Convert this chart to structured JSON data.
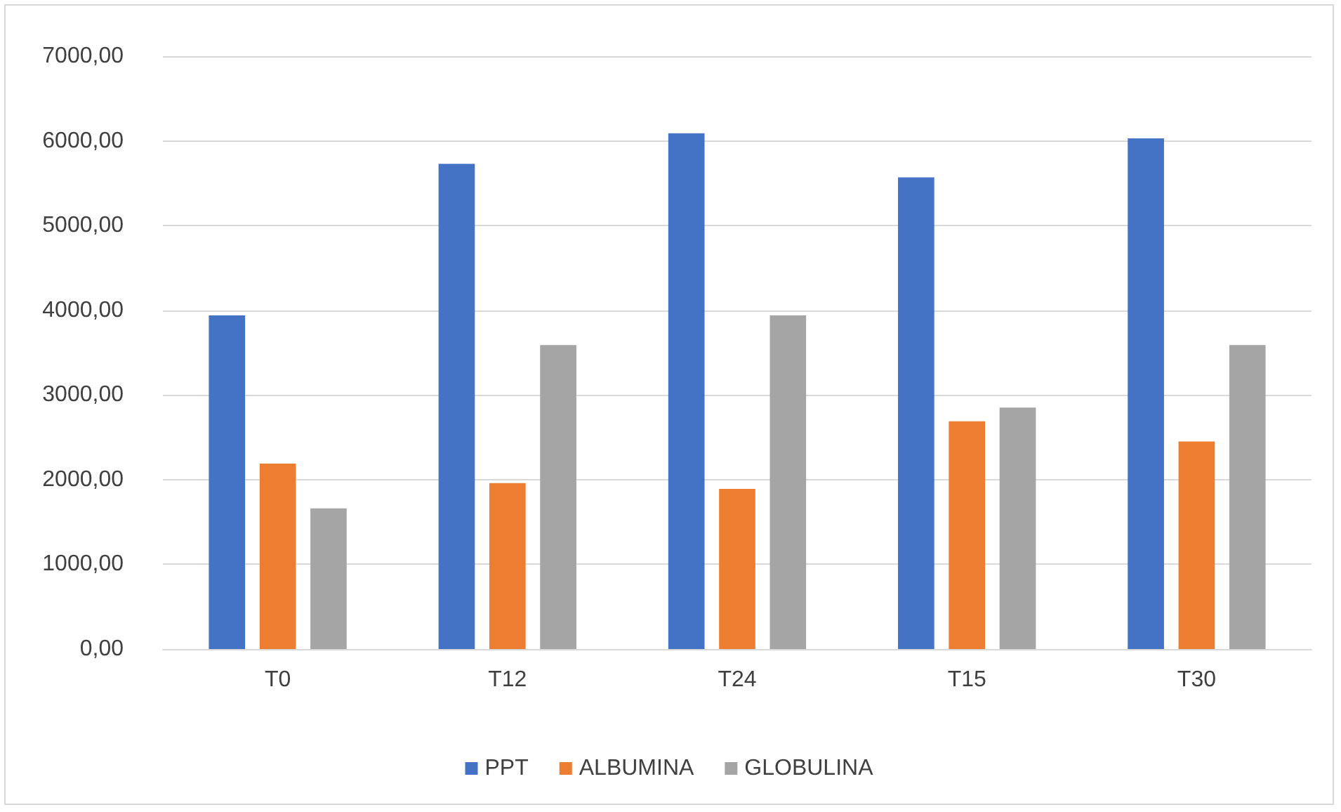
{
  "chart_data": {
    "type": "bar",
    "categories": [
      "T0",
      "T12",
      "T24",
      "T15",
      "T30"
    ],
    "series": [
      {
        "name": "PPT",
        "color": "#4472c4",
        "values": [
          3940,
          5730,
          6090,
          5570,
          6030
        ]
      },
      {
        "name": "ALBUMINA",
        "color": "#ed7d31",
        "values": [
          2190,
          1960,
          1890,
          2690,
          2450
        ]
      },
      {
        "name": "GLOBULINA",
        "color": "#a5a5a5",
        "values": [
          1660,
          3590,
          3940,
          2850,
          3590
        ]
      }
    ],
    "ylim": [
      0,
      7000
    ],
    "yticks": [
      {
        "value": 0,
        "label": "0,00"
      },
      {
        "value": 1000,
        "label": "1000,00"
      },
      {
        "value": 2000,
        "label": "2000,00"
      },
      {
        "value": 3000,
        "label": "3000,00"
      },
      {
        "value": 4000,
        "label": "4000,00"
      },
      {
        "value": 5000,
        "label": "5000,00"
      },
      {
        "value": 6000,
        "label": "6000,00"
      },
      {
        "value": 7000,
        "label": "7000,00"
      }
    ],
    "grid": "y",
    "legend": "bottom"
  }
}
